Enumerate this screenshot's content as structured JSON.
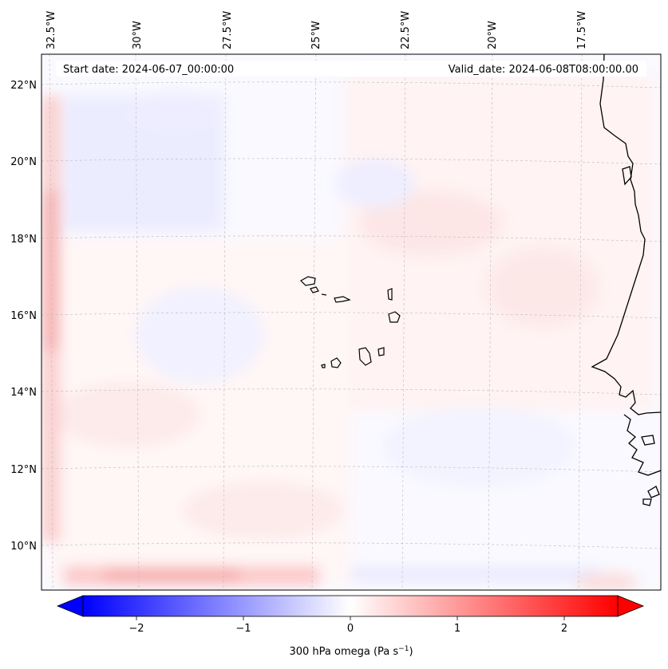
{
  "header": {
    "start_label": "Start date: 2024-06-07_00:00:00",
    "valid_label": "Valid_date: 2024-06-08T08:00:00.00"
  },
  "map": {
    "lon_labels": [
      "32.5°W",
      "30°W",
      "27.5°W",
      "25°W",
      "22.5°W",
      "20°W",
      "17.5°W"
    ],
    "lat_labels": [
      "22°N",
      "20°N",
      "18°N",
      "16°N",
      "14°N",
      "12°N",
      "10°N"
    ],
    "field": "300 hPa omega"
  },
  "colorbar": {
    "label": "300 hPa omega (Pa s",
    "label_sup": "−1",
    "label_close": ")",
    "ticks": [
      "−2",
      "−1",
      "0",
      "1",
      "2"
    ],
    "tick_values": [
      -2,
      -1,
      0,
      1,
      2
    ],
    "vmin": -2.5,
    "vmax": 2.5,
    "extend": "both",
    "colormap": "bwr",
    "color_low": "#0000ff",
    "color_mid": "#ffffff",
    "color_high": "#ff0000"
  }
}
